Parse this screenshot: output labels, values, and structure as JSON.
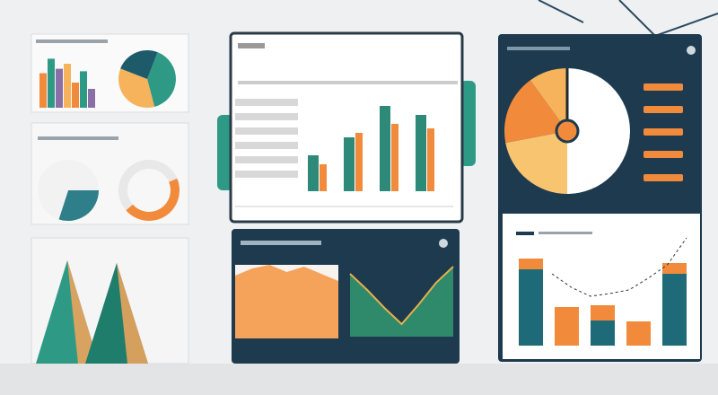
{
  "card_bars": [
    55,
    78,
    62,
    70,
    40,
    58,
    30
  ],
  "card_pie": [
    40,
    35,
    25
  ],
  "donuts": [
    [
      30,
      70
    ],
    [
      45,
      55
    ]
  ],
  "mountain_peaks": [
    115,
    112
  ],
  "main_bars": {
    "teal": [
      40,
      60,
      95,
      85
    ],
    "orange": [
      30,
      65,
      75,
      70
    ]
  },
  "area": [
    70,
    78,
    82,
    74,
    80,
    72,
    64
  ],
  "v_line": [
    70,
    52,
    32,
    14,
    36,
    60,
    78
  ],
  "right_pie": [
    50,
    22,
    18,
    10
  ],
  "right_bars": {
    "teal": [
      85,
      0,
      28,
      0,
      80
    ],
    "orange": [
      12,
      43,
      17,
      27,
      12
    ]
  },
  "right_line": [
    80,
    65,
    55,
    58,
    62,
    75,
    90,
    120
  ]
}
